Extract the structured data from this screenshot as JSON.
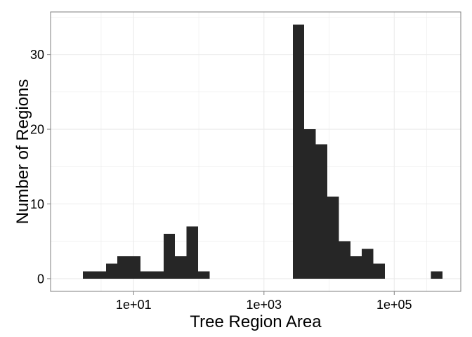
{
  "chart_data": {
    "type": "bar",
    "title": "",
    "xlabel": "Tree Region Area",
    "ylabel": "Number of Regions",
    "x_scale": "log10",
    "xlim": [
      0.53,
      1050000
    ],
    "ylim": [
      -1.7,
      35.7
    ],
    "grid": true,
    "legend": "none",
    "x_ticks": [
      {
        "value": 10,
        "label": "1e+01"
      },
      {
        "value": 1000,
        "label": "1e+03"
      },
      {
        "value": 100000,
        "label": "1e+05"
      }
    ],
    "y_ticks": [
      {
        "value": 0,
        "label": "0"
      },
      {
        "value": 10,
        "label": "10"
      },
      {
        "value": 20,
        "label": "20"
      },
      {
        "value": 30,
        "label": "30"
      }
    ],
    "bins": [
      {
        "x_from": 1.66,
        "x_to": 2.5,
        "count": 1
      },
      {
        "x_from": 2.5,
        "x_to": 3.76,
        "count": 1
      },
      {
        "x_from": 3.76,
        "x_to": 5.64,
        "count": 2
      },
      {
        "x_from": 5.64,
        "x_to": 8.48,
        "count": 3
      },
      {
        "x_from": 8.48,
        "x_to": 12.74,
        "count": 3
      },
      {
        "x_from": 12.74,
        "x_to": 19.1,
        "count": 1
      },
      {
        "x_from": 19.1,
        "x_to": 28.7,
        "count": 1
      },
      {
        "x_from": 28.7,
        "x_to": 43.1,
        "count": 6
      },
      {
        "x_from": 43.1,
        "x_to": 64.8,
        "count": 3
      },
      {
        "x_from": 64.8,
        "x_to": 97.3,
        "count": 7
      },
      {
        "x_from": 97.3,
        "x_to": 146,
        "count": 1
      },
      {
        "x_from": 2770,
        "x_to": 4160,
        "count": 34
      },
      {
        "x_from": 4160,
        "x_to": 6250,
        "count": 20
      },
      {
        "x_from": 6250,
        "x_to": 9390,
        "count": 18
      },
      {
        "x_from": 9390,
        "x_to": 14100,
        "count": 11
      },
      {
        "x_from": 14100,
        "x_to": 21200,
        "count": 5
      },
      {
        "x_from": 21200,
        "x_to": 31800,
        "count": 3
      },
      {
        "x_from": 31800,
        "x_to": 47800,
        "count": 4
      },
      {
        "x_from": 47800,
        "x_to": 71800,
        "count": 2
      },
      {
        "x_from": 367000,
        "x_to": 551000,
        "count": 1
      }
    ],
    "colors": {
      "bar": "#262626",
      "grid": "#ebebeb",
      "panel_border": "#7f7f7f",
      "tick": "#7f7f7f",
      "background": "#ffffff"
    }
  }
}
